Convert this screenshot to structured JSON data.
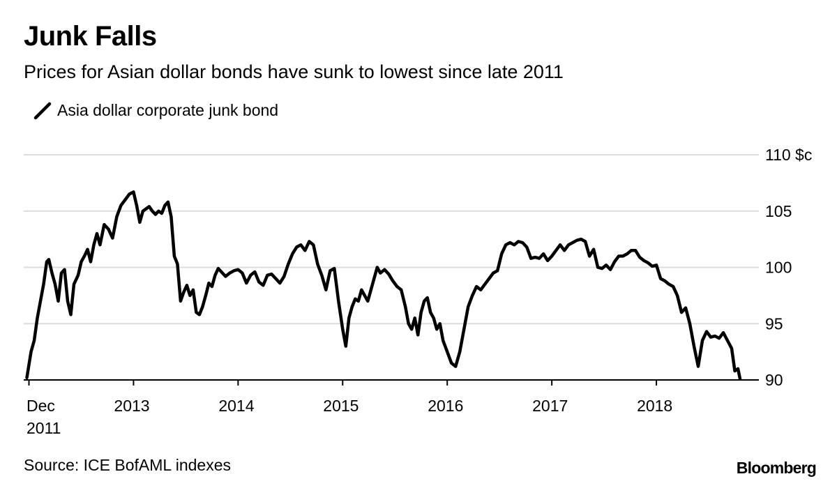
{
  "header": {
    "title": "Junk Falls",
    "subtitle": "Prices for Asian dollar bonds have sunk to lowest since late 2011"
  },
  "footer": {
    "source": "Source: ICE BofAML indexes",
    "brand": "Bloomberg"
  },
  "chart_data": {
    "type": "line",
    "title": "Junk Falls",
    "subtitle": "Prices for Asian dollar bonds have sunk to lowest since late 2011",
    "legend": {
      "placement": "top-left"
    },
    "grid": true,
    "y_axis": {
      "min": 90,
      "max": 110,
      "ticks": [
        90,
        95,
        100,
        105,
        110
      ],
      "tick_labels": [
        "90",
        "95",
        "100",
        "105",
        "110 $c"
      ],
      "position": "right"
    },
    "x_axis": {
      "min": 2011.95,
      "max": 2018.98,
      "ticks": [
        {
          "x": 2012.0,
          "label": [
            "Dec",
            "2011"
          ]
        },
        {
          "x": 2013.0,
          "label": [
            "2013"
          ]
        },
        {
          "x": 2014.0,
          "label": [
            "2014"
          ]
        },
        {
          "x": 2015.0,
          "label": [
            "2015"
          ]
        },
        {
          "x": 2016.0,
          "label": [
            "2016"
          ]
        },
        {
          "x": 2017.0,
          "label": [
            "2017"
          ]
        },
        {
          "x": 2018.0,
          "label": [
            "2018"
          ]
        }
      ]
    },
    "series": [
      {
        "name": "Asia dollar corporate junk bond",
        "color": "#000000",
        "points": [
          [
            2011.98,
            90.2
          ],
          [
            2012.02,
            92.5
          ],
          [
            2012.05,
            93.5
          ],
          [
            2012.08,
            95.5
          ],
          [
            2012.11,
            97.0
          ],
          [
            2012.14,
            98.5
          ],
          [
            2012.17,
            100.5
          ],
          [
            2012.19,
            100.7
          ],
          [
            2012.22,
            99.5
          ],
          [
            2012.25,
            98.5
          ],
          [
            2012.28,
            97.0
          ],
          [
            2012.31,
            99.5
          ],
          [
            2012.34,
            99.8
          ],
          [
            2012.37,
            97.0
          ],
          [
            2012.4,
            95.8
          ],
          [
            2012.43,
            98.5
          ],
          [
            2012.47,
            99.3
          ],
          [
            2012.5,
            100.5
          ],
          [
            2012.53,
            101.0
          ],
          [
            2012.56,
            101.6
          ],
          [
            2012.59,
            100.5
          ],
          [
            2012.62,
            102.0
          ],
          [
            2012.65,
            103.0
          ],
          [
            2012.68,
            102.0
          ],
          [
            2012.72,
            103.8
          ],
          [
            2012.76,
            103.4
          ],
          [
            2012.8,
            102.6
          ],
          [
            2012.84,
            104.5
          ],
          [
            2012.88,
            105.5
          ],
          [
            2012.92,
            106.0
          ],
          [
            2012.96,
            106.5
          ],
          [
            2013.0,
            106.7
          ],
          [
            2013.03,
            105.5
          ],
          [
            2013.06,
            104.0
          ],
          [
            2013.09,
            105.0
          ],
          [
            2013.12,
            105.2
          ],
          [
            2013.15,
            105.4
          ],
          [
            2013.18,
            105.0
          ],
          [
            2013.21,
            104.7
          ],
          [
            2013.24,
            105.0
          ],
          [
            2013.27,
            104.8
          ],
          [
            2013.3,
            105.5
          ],
          [
            2013.33,
            105.8
          ],
          [
            2013.36,
            104.5
          ],
          [
            2013.39,
            101.0
          ],
          [
            2013.42,
            100.3
          ],
          [
            2013.45,
            97.0
          ],
          [
            2013.48,
            97.8
          ],
          [
            2013.51,
            98.4
          ],
          [
            2013.54,
            97.5
          ],
          [
            2013.57,
            98.0
          ],
          [
            2013.6,
            96.0
          ],
          [
            2013.63,
            95.8
          ],
          [
            2013.66,
            96.5
          ],
          [
            2013.69,
            97.5
          ],
          [
            2013.72,
            98.6
          ],
          [
            2013.75,
            98.3
          ],
          [
            2013.78,
            99.3
          ],
          [
            2013.81,
            99.9
          ],
          [
            2013.84,
            99.6
          ],
          [
            2013.88,
            99.2
          ],
          [
            2013.92,
            99.5
          ],
          [
            2013.96,
            99.7
          ],
          [
            2014.0,
            99.8
          ],
          [
            2014.04,
            99.5
          ],
          [
            2014.08,
            98.6
          ],
          [
            2014.12,
            99.3
          ],
          [
            2014.16,
            99.6
          ],
          [
            2014.2,
            98.7
          ],
          [
            2014.24,
            98.4
          ],
          [
            2014.28,
            99.3
          ],
          [
            2014.32,
            99.4
          ],
          [
            2014.36,
            99.0
          ],
          [
            2014.4,
            98.6
          ],
          [
            2014.44,
            99.2
          ],
          [
            2014.48,
            100.3
          ],
          [
            2014.52,
            101.2
          ],
          [
            2014.56,
            101.8
          ],
          [
            2014.6,
            102.0
          ],
          [
            2014.64,
            101.5
          ],
          [
            2014.68,
            102.3
          ],
          [
            2014.72,
            102.0
          ],
          [
            2014.76,
            100.3
          ],
          [
            2014.8,
            99.3
          ],
          [
            2014.84,
            98.0
          ],
          [
            2014.88,
            99.7
          ],
          [
            2014.92,
            99.9
          ],
          [
            2014.96,
            97.0
          ],
          [
            2015.0,
            94.5
          ],
          [
            2015.03,
            93.0
          ],
          [
            2015.06,
            95.5
          ],
          [
            2015.09,
            96.5
          ],
          [
            2015.12,
            97.2
          ],
          [
            2015.15,
            97.0
          ],
          [
            2015.18,
            98.0
          ],
          [
            2015.21,
            97.5
          ],
          [
            2015.24,
            97.0
          ],
          [
            2015.27,
            98.0
          ],
          [
            2015.3,
            99.0
          ],
          [
            2015.33,
            100.0
          ],
          [
            2015.36,
            99.5
          ],
          [
            2015.4,
            99.8
          ],
          [
            2015.44,
            99.4
          ],
          [
            2015.48,
            98.8
          ],
          [
            2015.52,
            98.3
          ],
          [
            2015.56,
            98.0
          ],
          [
            2015.6,
            96.5
          ],
          [
            2015.63,
            95.0
          ],
          [
            2015.66,
            94.5
          ],
          [
            2015.69,
            95.5
          ],
          [
            2015.72,
            94.0
          ],
          [
            2015.75,
            96.0
          ],
          [
            2015.78,
            97.0
          ],
          [
            2015.81,
            97.3
          ],
          [
            2015.84,
            96.0
          ],
          [
            2015.87,
            95.5
          ],
          [
            2015.9,
            94.5
          ],
          [
            2015.93,
            95.0
          ],
          [
            2015.96,
            93.5
          ],
          [
            2016.0,
            92.5
          ],
          [
            2016.04,
            91.5
          ],
          [
            2016.08,
            91.2
          ],
          [
            2016.12,
            92.5
          ],
          [
            2016.16,
            94.5
          ],
          [
            2016.2,
            96.5
          ],
          [
            2016.24,
            97.5
          ],
          [
            2016.28,
            98.3
          ],
          [
            2016.32,
            98.0
          ],
          [
            2016.36,
            98.5
          ],
          [
            2016.4,
            99.0
          ],
          [
            2016.44,
            99.5
          ],
          [
            2016.48,
            99.7
          ],
          [
            2016.52,
            101.2
          ],
          [
            2016.56,
            102.0
          ],
          [
            2016.6,
            102.2
          ],
          [
            2016.64,
            102.0
          ],
          [
            2016.68,
            102.3
          ],
          [
            2016.72,
            102.2
          ],
          [
            2016.76,
            101.8
          ],
          [
            2016.8,
            100.8
          ],
          [
            2016.84,
            100.9
          ],
          [
            2016.88,
            100.8
          ],
          [
            2016.92,
            101.2
          ],
          [
            2016.96,
            100.6
          ],
          [
            2017.0,
            101.0
          ],
          [
            2017.04,
            101.5
          ],
          [
            2017.08,
            102.0
          ],
          [
            2017.12,
            101.5
          ],
          [
            2017.16,
            102.0
          ],
          [
            2017.2,
            102.2
          ],
          [
            2017.24,
            102.4
          ],
          [
            2017.28,
            102.5
          ],
          [
            2017.32,
            102.3
          ],
          [
            2017.36,
            101.0
          ],
          [
            2017.4,
            101.6
          ],
          [
            2017.44,
            100.0
          ],
          [
            2017.48,
            99.9
          ],
          [
            2017.52,
            100.2
          ],
          [
            2017.56,
            99.8
          ],
          [
            2017.6,
            100.5
          ],
          [
            2017.64,
            101.0
          ],
          [
            2017.68,
            101.0
          ],
          [
            2017.72,
            101.2
          ],
          [
            2017.76,
            101.5
          ],
          [
            2017.8,
            101.5
          ],
          [
            2017.84,
            100.9
          ],
          [
            2017.88,
            100.6
          ],
          [
            2017.92,
            100.4
          ],
          [
            2017.96,
            100.1
          ],
          [
            2018.0,
            100.2
          ],
          [
            2018.04,
            99.0
          ],
          [
            2018.08,
            98.8
          ],
          [
            2018.12,
            98.5
          ],
          [
            2018.16,
            98.3
          ],
          [
            2018.2,
            97.5
          ],
          [
            2018.24,
            96.0
          ],
          [
            2018.28,
            96.4
          ],
          [
            2018.32,
            95.0
          ],
          [
            2018.36,
            93.0
          ],
          [
            2018.4,
            91.2
          ],
          [
            2018.44,
            93.5
          ],
          [
            2018.48,
            94.3
          ],
          [
            2018.52,
            93.8
          ],
          [
            2018.56,
            93.9
          ],
          [
            2018.6,
            93.7
          ],
          [
            2018.64,
            94.2
          ],
          [
            2018.68,
            93.5
          ],
          [
            2018.72,
            92.8
          ],
          [
            2018.75,
            90.8
          ],
          [
            2018.78,
            91.0
          ],
          [
            2018.8,
            90.1
          ]
        ]
      }
    ]
  }
}
